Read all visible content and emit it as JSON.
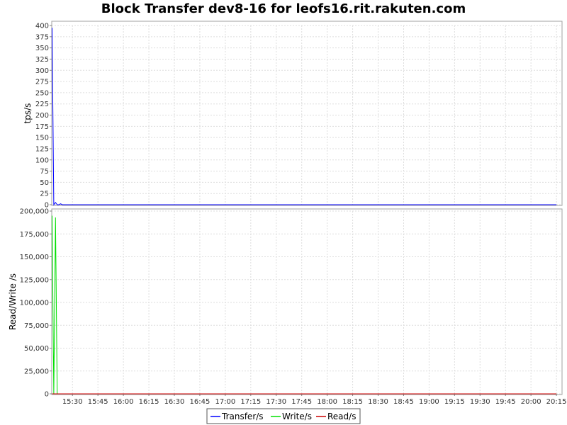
{
  "colors": {
    "transfer": "#0000ff",
    "write": "#00e000",
    "read": "#cc0000",
    "grid": "#dddddd",
    "axis": "#808080"
  },
  "chart_data": [
    {
      "type": "line",
      "title": "Block Transfer dev8-16 for leofs16.rit.rakuten.com",
      "ylabel": "tps/s",
      "ylim": [
        0,
        400
      ],
      "yticks": [
        "0",
        "25",
        "50",
        "75",
        "100",
        "125",
        "150",
        "175",
        "200",
        "225",
        "250",
        "275",
        "300",
        "325",
        "350",
        "375",
        "400"
      ],
      "grid": true,
      "series": [
        {
          "name": "Transfer/s",
          "color": "#0000ff",
          "x": [
            "15:18",
            "15:19",
            "15:20",
            "15:21",
            "15:22",
            "15:23",
            "15:24",
            "16:00",
            "17:00",
            "18:00",
            "19:00",
            "20:00",
            "20:15"
          ],
          "y": [
            395,
            0,
            5,
            0,
            0,
            2,
            0,
            0,
            0,
            0,
            0,
            0,
            0
          ]
        }
      ]
    },
    {
      "type": "line",
      "ylabel": "Read/Write /s",
      "ylim": [
        0,
        200000
      ],
      "yticks": [
        "0",
        "25,000",
        "50,000",
        "75,000",
        "100,000",
        "125,000",
        "150,000",
        "175,000",
        "200,000"
      ],
      "xticks": [
        "15:30",
        "15:45",
        "16:00",
        "16:15",
        "16:30",
        "16:45",
        "17:00",
        "17:15",
        "17:30",
        "17:45",
        "18:00",
        "18:15",
        "18:30",
        "18:45",
        "19:00",
        "19:15",
        "19:30",
        "19:45",
        "20:00",
        "20:15"
      ],
      "grid": true,
      "series": [
        {
          "name": "Write/s",
          "color": "#00e000",
          "x": [
            "15:18",
            "15:19",
            "15:20",
            "15:21",
            "16:00",
            "17:00",
            "18:00",
            "19:00",
            "20:00",
            "20:15"
          ],
          "y": [
            195000,
            0,
            193000,
            0,
            0,
            0,
            0,
            0,
            0,
            0
          ]
        },
        {
          "name": "Read/s",
          "color": "#cc0000",
          "x": [
            "15:18",
            "16:00",
            "17:00",
            "18:00",
            "19:00",
            "20:00",
            "20:15"
          ],
          "y": [
            0,
            0,
            0,
            0,
            0,
            0,
            0
          ]
        }
      ]
    }
  ],
  "legend": {
    "placement": "bottom",
    "items": [
      "Transfer/s",
      "Write/s",
      "Read/s"
    ]
  }
}
